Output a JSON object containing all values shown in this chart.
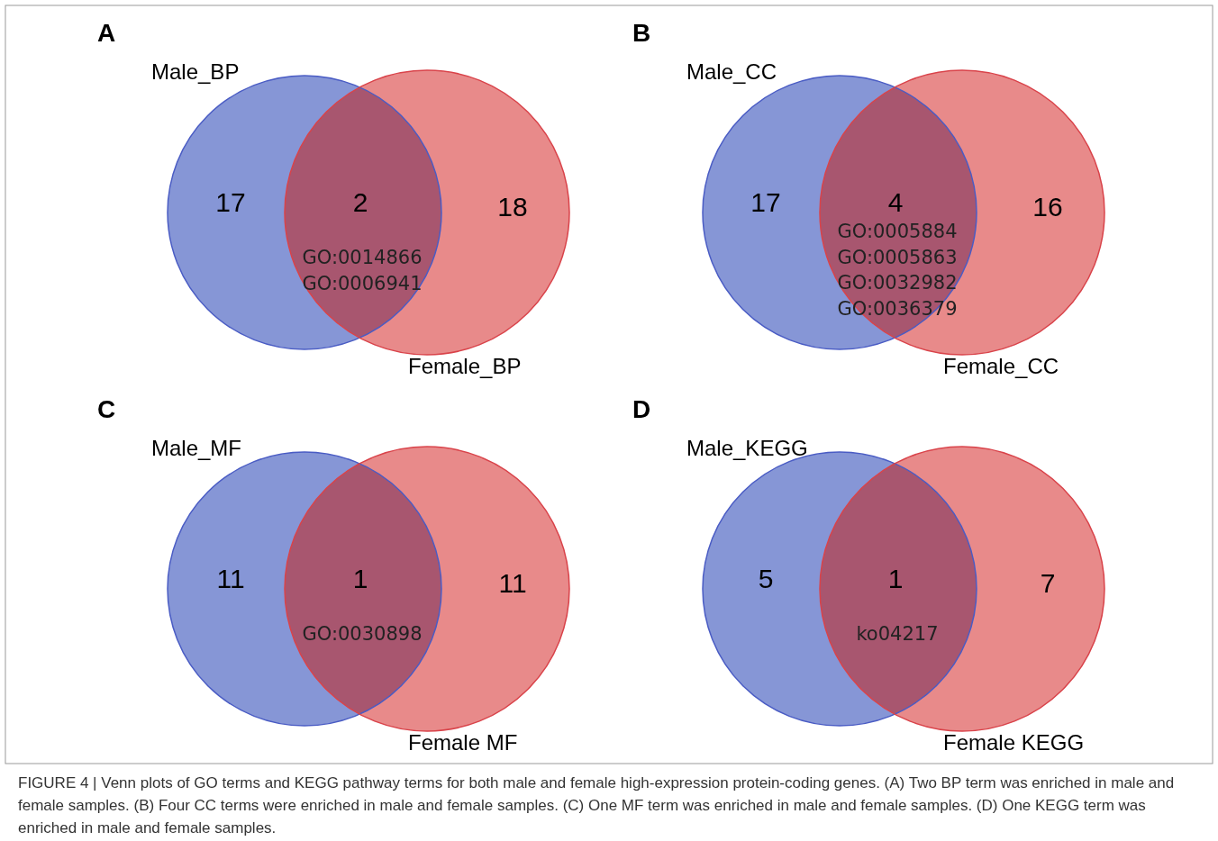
{
  "chart_data": [
    {
      "type": "other",
      "title": "A",
      "categories": [
        "Male_BP",
        null,
        "Female_BP"
      ],
      "values": [
        17,
        2,
        18
      ],
      "data_labels": true,
      "colors": [
        "#8696d6",
        "#a8566f",
        "#e88a8a"
      ],
      "annotations": [
        "GO:0014866",
        "GO:0006941"
      ]
    },
    {
      "type": "other",
      "title": "B",
      "categories": [
        "Male_CC",
        null,
        "Female_CC"
      ],
      "values": [
        17,
        4,
        16
      ],
      "data_labels": true,
      "colors": [
        "#8696d6",
        "#a8566f",
        "#e88a8a"
      ],
      "annotations": [
        "GO:0005884",
        "GO:0005863",
        "GO:0032982",
        "GO:0036379"
      ]
    },
    {
      "type": "other",
      "title": "C",
      "categories": [
        "Male_MF",
        null,
        "Female  MF"
      ],
      "values": [
        11,
        1,
        11
      ],
      "data_labels": true,
      "colors": [
        "#8696d6",
        "#a8566f",
        "#e88a8a"
      ],
      "annotations": [
        "GO:0030898"
      ]
    },
    {
      "type": "other",
      "title": "D",
      "categories": [
        "Male_KEGG",
        null,
        "Female  KEGG"
      ],
      "values": [
        5,
        1,
        7
      ],
      "data_labels": true,
      "colors": [
        "#8696d6",
        "#a8566f",
        "#e88a8a"
      ],
      "annotations": [
        "ko04217"
      ]
    },
    {
      "type": "other",
      "annotations": [
        "FIGURE 4 | Venn plots of GO terms and KEGG pathway terms for both male and female high-expression protein-coding genes. (A) Two BP term was enriched in male and female samples. (B) Four CC terms were enriched in male and female samples. (C) One MF term was enriched in male and female samples. (D) One KEGG term was enriched in male and female samples."
      ]
    }
  ]
}
